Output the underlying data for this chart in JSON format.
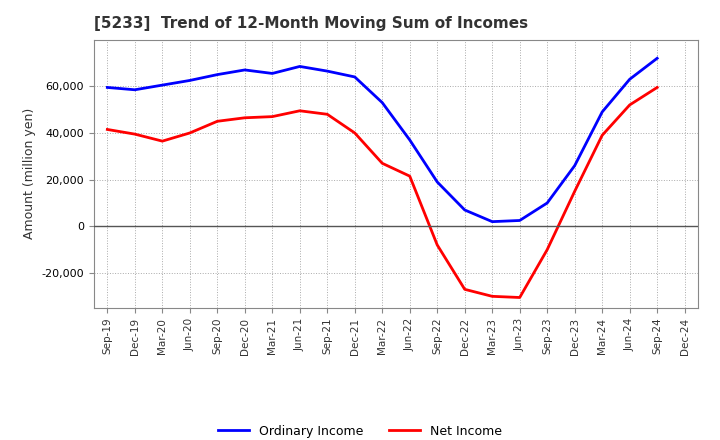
{
  "title": "[5233]  Trend of 12-Month Moving Sum of Incomes",
  "ylabel": "Amount (million yen)",
  "x_labels": [
    "Sep-19",
    "Dec-19",
    "Mar-20",
    "Jun-20",
    "Sep-20",
    "Dec-20",
    "Mar-21",
    "Jun-21",
    "Sep-21",
    "Dec-21",
    "Mar-22",
    "Jun-22",
    "Sep-22",
    "Dec-22",
    "Mar-23",
    "Jun-23",
    "Sep-23",
    "Dec-23",
    "Mar-24",
    "Jun-24",
    "Sep-24",
    "Dec-24"
  ],
  "ordinary_income": [
    59500,
    58500,
    60500,
    62500,
    65000,
    67000,
    65500,
    68500,
    66500,
    64000,
    53000,
    37000,
    19000,
    7000,
    2000,
    2500,
    10000,
    26000,
    49000,
    63000,
    72000,
    null
  ],
  "net_income": [
    41500,
    39500,
    36500,
    40000,
    45000,
    46500,
    47000,
    49500,
    48000,
    40000,
    27000,
    21500,
    -8000,
    -27000,
    -30000,
    -30500,
    -10000,
    15000,
    39000,
    52000,
    59500,
    null
  ],
  "ordinary_color": "#0000FF",
  "net_color": "#FF0000",
  "ylim": [
    -35000,
    80000
  ],
  "yticks": [
    -20000,
    0,
    20000,
    40000,
    60000
  ],
  "bg_color": "#FFFFFF",
  "grid_color": "#AAAAAA",
  "legend_labels": [
    "Ordinary Income",
    "Net Income"
  ],
  "title_color": "#333333",
  "zero_line_color": "#555555"
}
